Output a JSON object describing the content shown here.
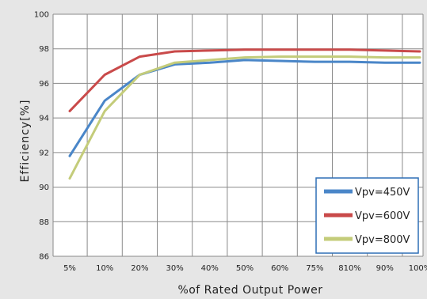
{
  "chart_data": {
    "type": "line",
    "xlabel": "%of Rated Output Power",
    "ylabel": "Efficiency[%]",
    "categories": [
      "5%",
      "10%",
      "20%",
      "30%",
      "40%",
      "50%",
      "60%",
      "75%",
      "810%",
      "90%",
      "100%"
    ],
    "y_ticks": [
      "86",
      "88",
      "90",
      "92",
      "94",
      "96",
      "98",
      "100"
    ],
    "ylim": [
      86,
      100
    ],
    "grid": true,
    "legend_position": "bottom-right",
    "series": [
      {
        "name": "Vpv=450V",
        "color": "#4a86c8",
        "values": [
          91.8,
          95.0,
          96.5,
          97.1,
          97.2,
          97.35,
          97.3,
          97.25,
          97.25,
          97.2,
          97.2
        ]
      },
      {
        "name": "Vpv=600V",
        "color": "#c94a4a",
        "values": [
          94.4,
          96.5,
          97.55,
          97.85,
          97.9,
          97.95,
          97.95,
          97.95,
          97.95,
          97.9,
          97.85
        ]
      },
      {
        "name": "Vpv=800V",
        "color": "#c4cc7a",
        "values": [
          90.5,
          94.4,
          96.5,
          97.2,
          97.35,
          97.5,
          97.55,
          97.55,
          97.55,
          97.5,
          97.5
        ]
      }
    ]
  }
}
